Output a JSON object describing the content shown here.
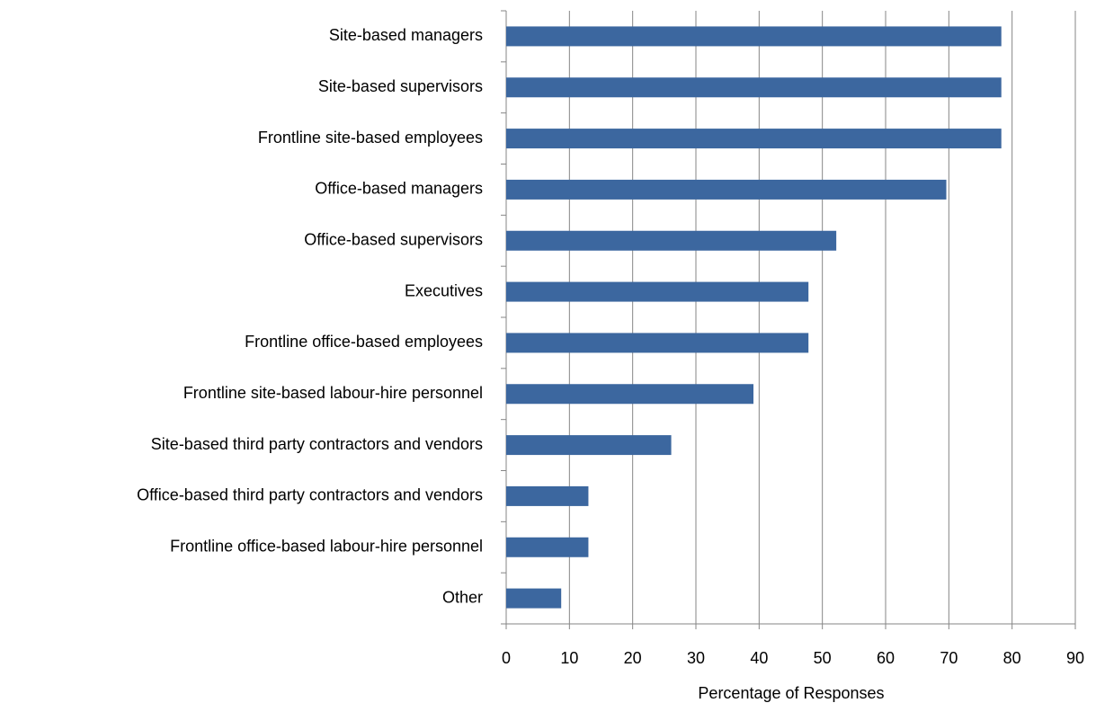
{
  "chart_data": {
    "type": "hbar",
    "categories": [
      "Site-based managers",
      "Site-based supervisors",
      "Frontline site-based employees",
      "Office-based managers",
      "Office-based supervisors",
      "Executives",
      "Frontline office-based employees",
      "Frontline site-based labour-hire personnel",
      "Site-based third party contractors and vendors",
      "Office-based third party contractors and vendors",
      "Frontline office-based labour-hire personnel",
      "Other"
    ],
    "values": [
      78.3,
      78.3,
      78.3,
      69.6,
      52.2,
      47.8,
      47.8,
      39.1,
      26.1,
      13.0,
      13.0,
      8.7
    ],
    "color": "#3c679f",
    "x_label": "Percentage of Responses",
    "xlim": [
      0,
      90
    ],
    "xticks": [
      0,
      10,
      20,
      30,
      40,
      50,
      60,
      70,
      80,
      90
    ],
    "grid": true
  }
}
